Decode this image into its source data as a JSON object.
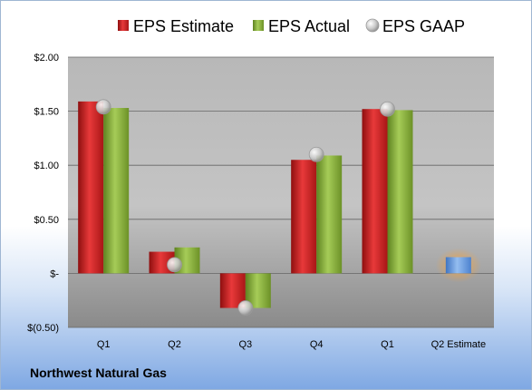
{
  "company": "Northwest Natural Gas",
  "colors": {
    "estimate": "#d62728",
    "actual": "#8cb43c",
    "gaap": "#c8c8c8",
    "future_estimate": "#6fa0dc",
    "future_glow": "#f7a23a"
  },
  "chart_data": {
    "type": "bar",
    "categories": [
      "Q1",
      "Q2",
      "Q3",
      "Q4",
      "Q1",
      "Q2 Estimate"
    ],
    "series": [
      {
        "name": "EPS Estimate",
        "values": [
          1.59,
          0.2,
          -0.32,
          1.05,
          1.52,
          0.15
        ]
      },
      {
        "name": "EPS Actual",
        "values": [
          1.53,
          0.24,
          -0.32,
          1.09,
          1.51,
          null
        ]
      },
      {
        "name": "EPS GAAP",
        "values": [
          1.54,
          0.08,
          -0.32,
          1.1,
          1.52,
          null
        ]
      }
    ],
    "y_ticks": [
      "$2.00",
      "$1.50",
      "$1.00",
      "$0.50",
      "$-",
      "$(0.50)"
    ],
    "y_tick_values": [
      2.0,
      1.5,
      1.0,
      0.5,
      0.0,
      -0.5
    ],
    "ylim": [
      -0.5,
      2.0
    ],
    "grid": true,
    "legend": "top"
  }
}
